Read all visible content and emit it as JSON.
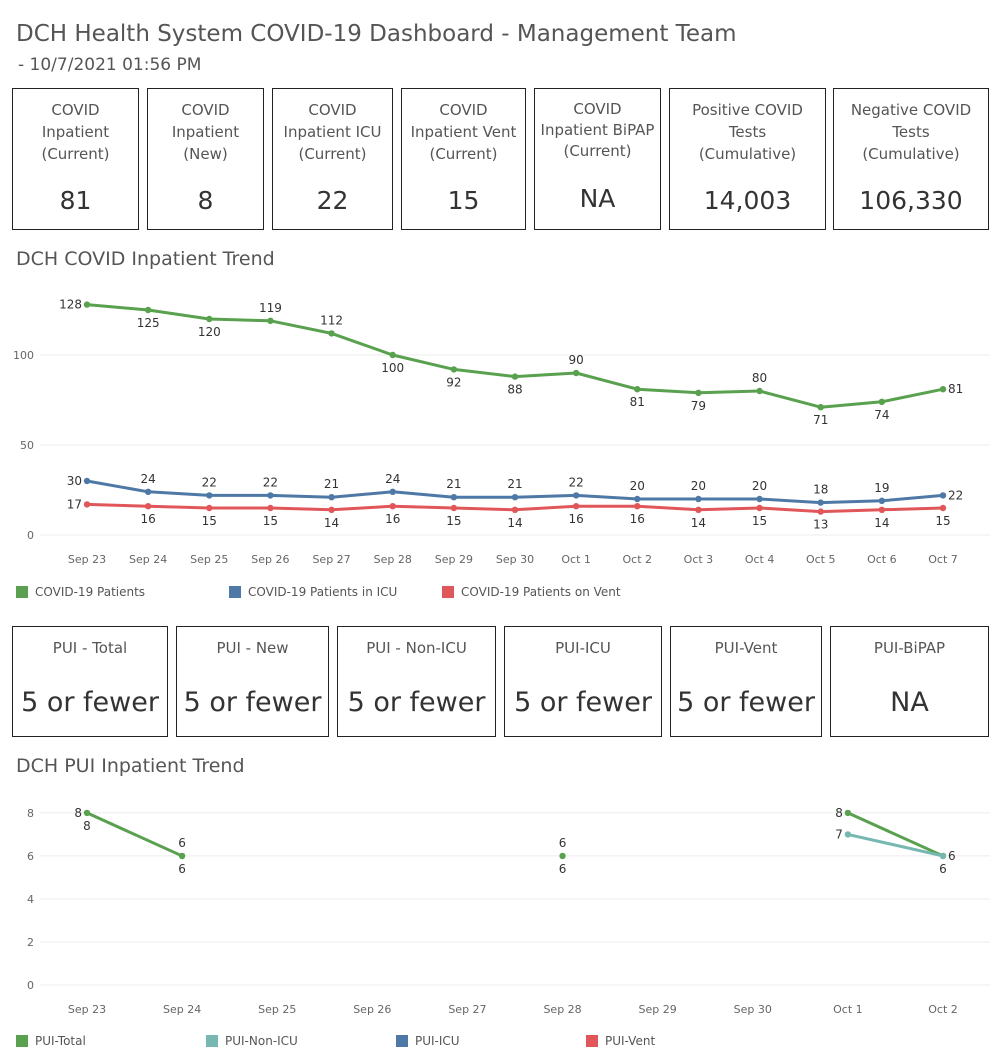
{
  "header": {
    "title": "DCH Health System COVID-19 Dashboard - Management Team",
    "subtitle": " - 10/7/2021 01:56 PM"
  },
  "kpis": [
    {
      "label": "COVID\nInpatient\n(Current)",
      "value": "81"
    },
    {
      "label": "COVID\nInpatient\n(New)",
      "value": "8"
    },
    {
      "label": "COVID\nInpatient ICU\n(Current)",
      "value": "22"
    },
    {
      "label": "COVID\nInpatient Vent\n(Current)",
      "value": "15"
    },
    {
      "label": "COVID\nInpatient BiPAP\n(Current)",
      "value": "NA"
    },
    {
      "label": "Positive COVID\nTests\n(Cumulative)",
      "value": "14,003"
    },
    {
      "label": "Negative COVID\nTests\n(Cumulative)",
      "value": "106,330"
    }
  ],
  "pui_kpis": [
    {
      "label": "PUI - Total",
      "value": "5 or fewer"
    },
    {
      "label": "PUI - New",
      "value": "5 or fewer"
    },
    {
      "label": "PUI - Non-ICU",
      "value": "5 or fewer"
    },
    {
      "label": "PUI-ICU",
      "value": "5 or fewer"
    },
    {
      "label": "PUI-Vent",
      "value": "5 or fewer"
    },
    {
      "label": "PUI-BiPAP",
      "value": "NA"
    }
  ],
  "chart_data": [
    {
      "type": "line",
      "title": "DCH COVID Inpatient Trend",
      "categories": [
        "Sep 23",
        "Sep 24",
        "Sep 25",
        "Sep 26",
        "Sep 27",
        "Sep 28",
        "Sep 29",
        "Sep 30",
        "Oct 1",
        "Oct 2",
        "Oct 3",
        "Oct 4",
        "Oct 5",
        "Oct 6",
        "Oct 7"
      ],
      "yticks": [
        0,
        50,
        100
      ],
      "ylim": [
        0,
        135
      ],
      "grid": true,
      "legend_position": "bottom",
      "series": [
        {
          "name": "COVID-19 Patients",
          "color": "#59a14f",
          "values": [
            128,
            125,
            120,
            119,
            112,
            100,
            92,
            88,
            90,
            81,
            79,
            80,
            71,
            74,
            81
          ],
          "label_pos": [
            "l",
            "b",
            "b",
            "t",
            "t",
            "b",
            "b",
            "b",
            "t",
            "b",
            "b",
            "t",
            "b",
            "b",
            "r"
          ]
        },
        {
          "name": "COVID-19 Patients in ICU",
          "color": "#4e79a7",
          "values": [
            30,
            24,
            22,
            22,
            21,
            24,
            21,
            21,
            22,
            20,
            20,
            20,
            18,
            19,
            22
          ],
          "label_pos": [
            "l",
            "t",
            "t",
            "t",
            "t",
            "t",
            "t",
            "t",
            "t",
            "t",
            "t",
            "t",
            "t",
            "t",
            "r"
          ]
        },
        {
          "name": "COVID-19 Patients on Vent",
          "color": "#e15759",
          "values": [
            17,
            16,
            15,
            15,
            14,
            16,
            15,
            14,
            16,
            16,
            14,
            15,
            13,
            14,
            15
          ],
          "label_pos": [
            "l",
            "b",
            "b",
            "b",
            "b",
            "b",
            "b",
            "b",
            "b",
            "b",
            "b",
            "b",
            "b",
            "b",
            "b"
          ]
        }
      ]
    },
    {
      "type": "line",
      "title": "DCH PUI Inpatient Trend",
      "categories": [
        "Sep 23",
        "Sep 24",
        "Sep 25",
        "Sep 26",
        "Sep 27",
        "Sep 28",
        "Sep 29",
        "Sep 30",
        "Oct 1",
        "Oct 2"
      ],
      "yticks": [
        0,
        2,
        4,
        6,
        8
      ],
      "ylim": [
        0,
        8.6
      ],
      "grid": true,
      "legend_position": "bottom",
      "series": [
        {
          "name": "PUI-Total",
          "color": "#59a14f",
          "values": [
            8,
            6,
            null,
            null,
            null,
            6,
            null,
            null,
            8,
            6
          ],
          "label_pos": [
            "l",
            "t",
            null,
            null,
            null,
            "t",
            null,
            null,
            "l",
            "r"
          ],
          "label_pos2": [
            "b",
            "b",
            null,
            null,
            null,
            "b",
            null,
            null,
            null,
            "b"
          ]
        },
        {
          "name": "PUI-Non-ICU",
          "color": "#76b7b2",
          "values": [
            null,
            null,
            null,
            null,
            null,
            null,
            null,
            null,
            7,
            6
          ],
          "label_pos": [
            null,
            null,
            null,
            null,
            null,
            null,
            null,
            null,
            "l",
            null
          ]
        },
        {
          "name": "PUI-ICU",
          "color": "#4e79a7",
          "values": [
            null,
            null,
            null,
            null,
            null,
            null,
            null,
            null,
            null,
            null
          ]
        },
        {
          "name": "PUI-Vent",
          "color": "#e15759",
          "values": [
            null,
            null,
            null,
            null,
            null,
            null,
            null,
            null,
            null,
            null
          ]
        }
      ]
    }
  ]
}
